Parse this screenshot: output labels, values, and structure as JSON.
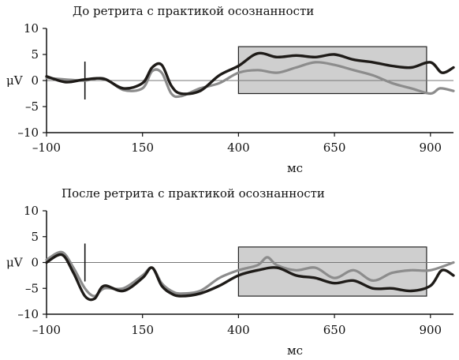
{
  "chart_data": [
    {
      "type": "line",
      "title": "До ретрита с практикой осознанности",
      "xlabel": "мс",
      "ylabel": "μV",
      "xlim": [
        -100,
        960
      ],
      "ylim": [
        -10,
        10
      ],
      "xticks": [
        -100,
        150,
        400,
        650,
        900
      ],
      "xtick_labels": [
        "–100",
        "150",
        "400",
        "650",
        "900"
      ],
      "yticks": [
        10,
        5,
        0,
        -5,
        -10
      ],
      "ytick_labels": [
        "10",
        "5",
        "0",
        "–5",
        "–10"
      ],
      "zero_line": true,
      "stimulus_marker_x": 0,
      "window": {
        "x": [
          400,
          890
        ],
        "y": [
          -2.5,
          6.5
        ]
      },
      "series": [
        {
          "color": "#8c8c8c",
          "x": [
            -100,
            -50,
            0,
            50,
            100,
            150,
            175,
            200,
            225,
            250,
            300,
            350,
            400,
            450,
            500,
            550,
            600,
            650,
            700,
            750,
            800,
            850,
            900,
            925,
            960
          ],
          "y": [
            0.5,
            0.2,
            0.0,
            0.4,
            -1.8,
            -1.5,
            1.8,
            1.5,
            -2.5,
            -3.0,
            -1.5,
            -0.5,
            1.5,
            2.0,
            1.5,
            2.5,
            3.5,
            3.0,
            2.0,
            1.0,
            -0.5,
            -1.5,
            -2.5,
            -1.5,
            -2.0
          ]
        },
        {
          "color": "#1e1b18",
          "x": [
            -100,
            -50,
            0,
            50,
            100,
            150,
            175,
            200,
            225,
            250,
            300,
            350,
            400,
            450,
            500,
            550,
            600,
            650,
            700,
            750,
            800,
            850,
            900,
            930,
            960
          ],
          "y": [
            0.8,
            -0.3,
            0.2,
            0.3,
            -1.5,
            -0.5,
            2.5,
            3.0,
            -1.0,
            -2.5,
            -2.0,
            1.0,
            2.8,
            5.2,
            4.5,
            4.8,
            4.5,
            5.0,
            4.0,
            3.5,
            2.8,
            2.5,
            3.5,
            1.5,
            2.5
          ]
        }
      ]
    },
    {
      "type": "line",
      "title": "После ретрита с практикой осознанности",
      "xlabel": "мс",
      "ylabel": "μV",
      "xlim": [
        -100,
        960
      ],
      "ylim": [
        -10,
        10
      ],
      "xticks": [
        -100,
        150,
        400,
        650,
        900
      ],
      "xtick_labels": [
        "–100",
        "150",
        "400",
        "650",
        "900"
      ],
      "yticks": [
        10,
        5,
        0,
        -5,
        -10
      ],
      "ytick_labels": [
        "10",
        "5",
        "0",
        "–5",
        "–10"
      ],
      "zero_line": true,
      "stimulus_marker_x": 0,
      "window": {
        "x": [
          400,
          890
        ],
        "y": [
          -6.5,
          3
        ]
      },
      "series": [
        {
          "color": "#8c8c8c",
          "x": [
            -100,
            -60,
            -30,
            0,
            25,
            50,
            100,
            150,
            175,
            200,
            225,
            250,
            300,
            350,
            400,
            450,
            475,
            500,
            550,
            600,
            650,
            700,
            750,
            800,
            850,
            900,
            960
          ],
          "y": [
            0.5,
            2.0,
            -1.0,
            -5.0,
            -6.5,
            -5.0,
            -5.0,
            -2.5,
            -1.0,
            -4.0,
            -5.5,
            -6.0,
            -5.5,
            -3.0,
            -1.5,
            -0.5,
            1.0,
            -0.5,
            -1.5,
            -1.0,
            -3.0,
            -1.5,
            -3.5,
            -2.0,
            -1.5,
            -1.5,
            0.0
          ]
        },
        {
          "color": "#1e1b18",
          "x": [
            -100,
            -60,
            -30,
            0,
            25,
            50,
            100,
            150,
            175,
            200,
            225,
            250,
            300,
            350,
            400,
            450,
            500,
            550,
            600,
            650,
            700,
            750,
            800,
            850,
            900,
            930,
            960
          ],
          "y": [
            0.0,
            1.5,
            -2.0,
            -6.5,
            -7.0,
            -4.5,
            -5.5,
            -3.0,
            -1.0,
            -4.5,
            -6.0,
            -6.5,
            -6.0,
            -4.5,
            -2.5,
            -1.5,
            -1.0,
            -2.5,
            -3.0,
            -4.0,
            -3.5,
            -5.0,
            -5.0,
            -5.5,
            -4.5,
            -1.5,
            -2.5
          ]
        }
      ]
    }
  ]
}
